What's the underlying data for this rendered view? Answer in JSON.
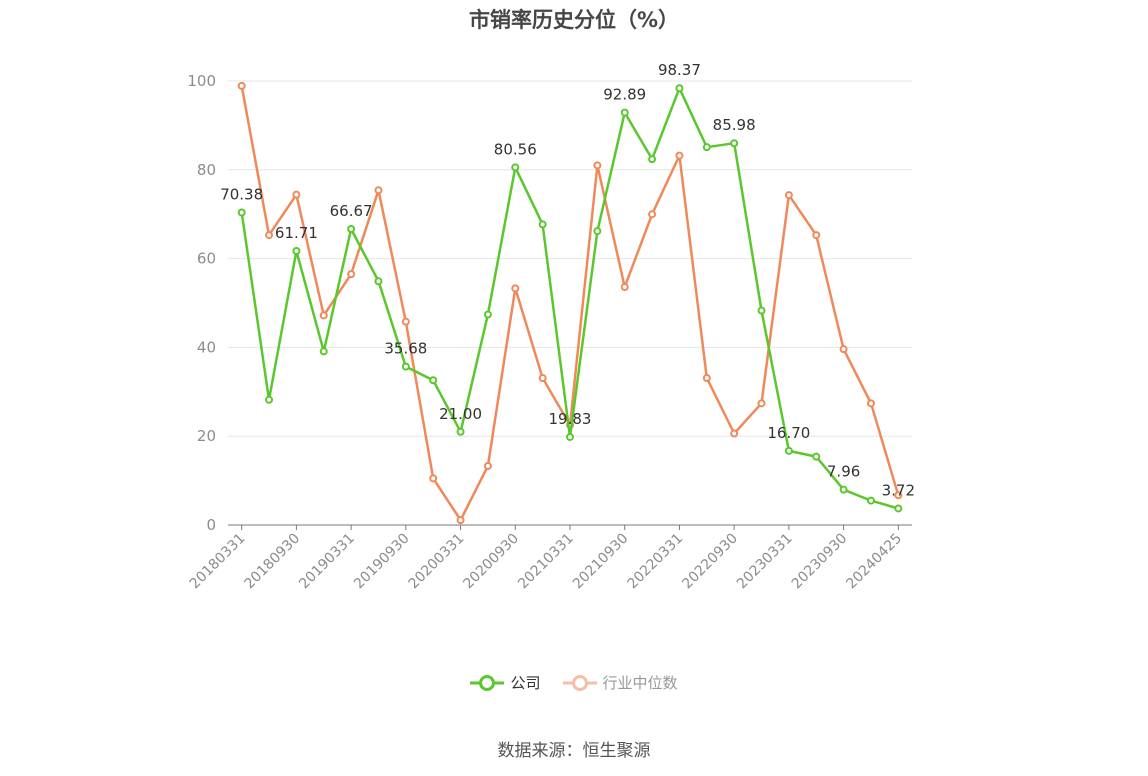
{
  "chart_data": {
    "type": "line",
    "title": "市销率历史分位（%）",
    "source": "数据来源：恒生聚源",
    "xlabel": "",
    "ylabel": "",
    "ylim": [
      0,
      100
    ],
    "yticks": [
      0,
      20,
      40,
      60,
      80,
      100
    ],
    "grid": true,
    "legend_position": "bottom",
    "x": [
      "20180331",
      "20180630",
      "20180930",
      "20181231",
      "20190331",
      "20190630",
      "20190930",
      "20191231",
      "20200331",
      "20200630",
      "20200930",
      "20201231",
      "20210331",
      "20210630",
      "20210930",
      "20211231",
      "20220331",
      "20220630",
      "20220930",
      "20221231",
      "20230331",
      "20230630",
      "20230930",
      "20231231",
      "20240425"
    ],
    "xtick_labels": [
      "20180331",
      "20180930",
      "20190331",
      "20190930",
      "20200331",
      "20200930",
      "20210331",
      "20210930",
      "20220331",
      "20220930",
      "20230331",
      "20230930",
      "20240425"
    ],
    "series": [
      {
        "name": "公司",
        "color": "#5ac72d",
        "values": [
          70.38,
          28.2,
          61.71,
          39.1,
          66.67,
          54.9,
          35.68,
          32.6,
          21.0,
          47.4,
          80.56,
          67.7,
          19.83,
          66.2,
          92.89,
          82.4,
          98.37,
          85.1,
          85.98,
          48.3,
          16.7,
          15.4,
          7.96,
          5.5,
          3.72
        ],
        "labels": [
          "70.38",
          "",
          "61.71",
          "",
          "66.67",
          "",
          "35.68",
          "",
          "21.00",
          "",
          "80.56",
          "",
          "19.83",
          "",
          "92.89",
          "",
          "98.37",
          "",
          "85.98",
          "",
          "16.70",
          "",
          "7.96",
          "",
          "3.72"
        ]
      },
      {
        "name": "行业中位数",
        "color": "#f0895a",
        "values": [
          98.9,
          65.3,
          74.4,
          47.2,
          56.5,
          75.4,
          45.8,
          10.5,
          1.1,
          13.3,
          53.3,
          33.1,
          22.5,
          81.0,
          53.6,
          70.0,
          83.2,
          33.1,
          20.6,
          27.4,
          74.3,
          65.3,
          39.6,
          27.4,
          6.7
        ]
      }
    ]
  }
}
